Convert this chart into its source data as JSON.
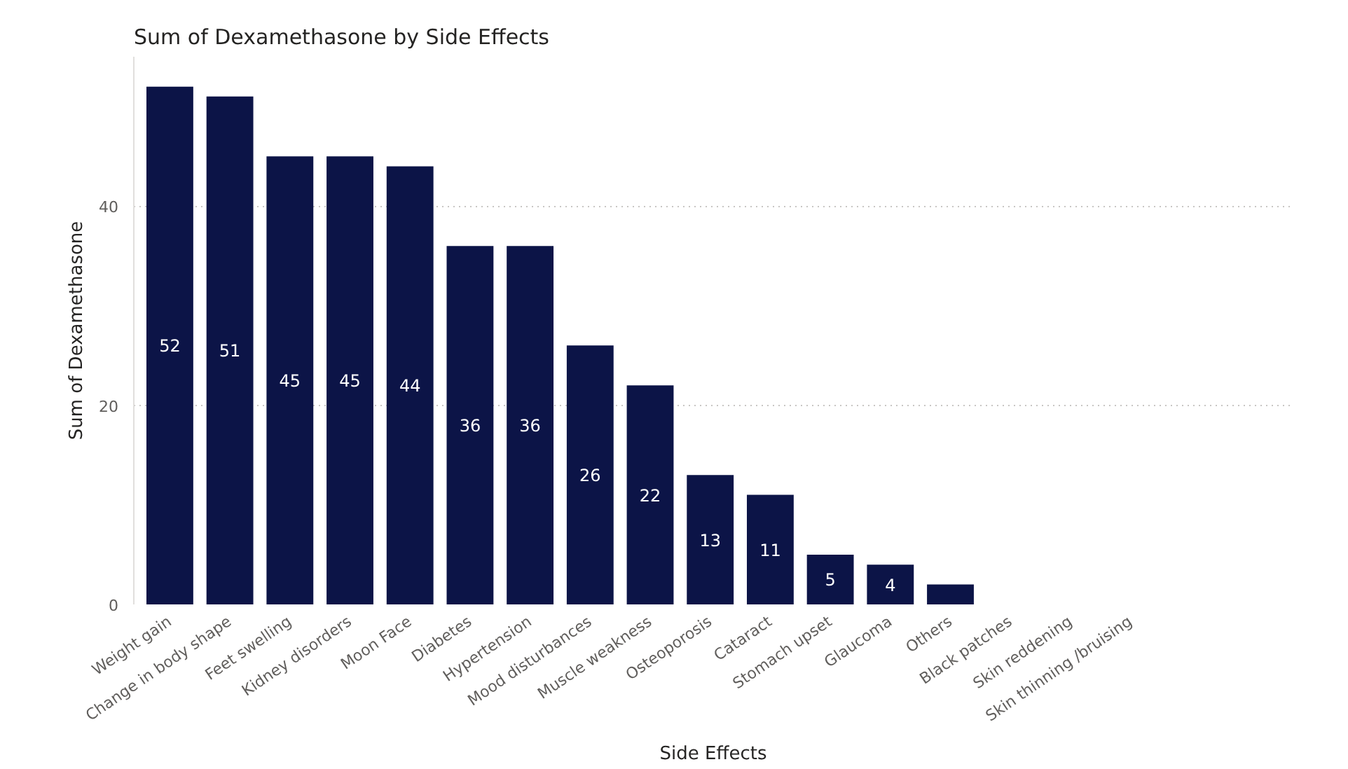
{
  "chart_data": {
    "type": "bar",
    "title": "Sum of Dexamethasone by Side Effects",
    "xlabel": "Side Effects",
    "ylabel": "Sum of Dexamethasone",
    "categories": [
      "Weight gain",
      "Change in body shape",
      "Feet swelling",
      "Kidney disorders",
      "Moon Face",
      "Diabetes",
      "Hypertension",
      "Mood disturbances",
      "Muscle weakness",
      "Osteoporosis",
      "Cataract",
      "Stomach upset",
      "Glaucoma",
      "Others",
      "Black patches",
      "Skin reddening",
      "Skin thinning /bruising"
    ],
    "values": [
      52,
      51,
      45,
      45,
      44,
      36,
      36,
      26,
      22,
      13,
      11,
      5,
      4,
      2,
      0,
      0,
      0
    ],
    "value_labels": [
      "52",
      "51",
      "45",
      "45",
      "44",
      "36",
      "36",
      "26",
      "22",
      "13",
      "11",
      "5",
      "4",
      null,
      null,
      null,
      null
    ],
    "color": "#0c1447",
    "ylim": [
      0,
      55
    ],
    "yticks": [
      0,
      20,
      40
    ],
    "grid": "y"
  }
}
